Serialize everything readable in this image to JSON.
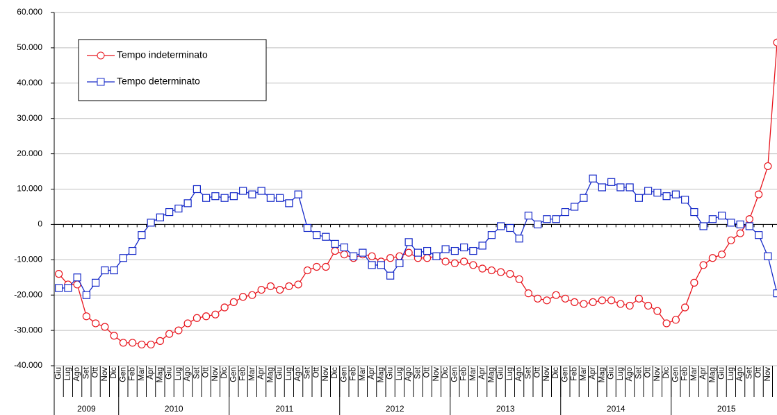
{
  "chart_data": {
    "type": "line",
    "categories": [
      "Giu",
      "Lug",
      "Ago",
      "Set",
      "Ott",
      "Nov",
      "Dic",
      "Gen",
      "Feb",
      "Mar",
      "Apr",
      "Mag",
      "Giu",
      "Lug",
      "Ago",
      "Set",
      "Ott",
      "Nov",
      "Dic",
      "Gen",
      "Feb",
      "Mar",
      "Apr",
      "Mag",
      "Giu",
      "Lug",
      "Ago",
      "Set",
      "Ott",
      "Nov",
      "Dic",
      "Gen",
      "Feb",
      "Mar",
      "Apr",
      "Mag",
      "Giu",
      "Lug",
      "Ago",
      "Set",
      "Ott",
      "Nov",
      "Dic",
      "Gen",
      "Feb",
      "Mar",
      "Apr",
      "Mag",
      "Giu",
      "Lug",
      "Ago",
      "Set",
      "Ott",
      "Nov",
      "Dic",
      "Gen",
      "Feb",
      "Mar",
      "Apr",
      "Mag",
      "Giu",
      "Lug",
      "Ago",
      "Set",
      "Ott",
      "Nov",
      "Dic",
      "Gen",
      "Feb",
      "Mar",
      "Apr",
      "Mag",
      "Giu",
      "Lug",
      "Ago",
      "Set",
      "Ott",
      "Nov",
      null
    ],
    "years": [
      "2009",
      "2010",
      "2011",
      "2012",
      "2013",
      "2014",
      "2015"
    ],
    "series": [
      {
        "name": "Tempo indeterminato",
        "color": "#e8141c",
        "marker": "circle",
        "values": [
          -14000,
          -17000,
          -17000,
          -26000,
          -28000,
          -29000,
          -31500,
          -33500,
          -33500,
          -34000,
          -34000,
          -33000,
          -31000,
          -30000,
          -28000,
          -26500,
          -26000,
          -25500,
          -23500,
          -22000,
          -20500,
          -20000,
          -18500,
          -17500,
          -18500,
          -17500,
          -17000,
          -13000,
          -12000,
          -12000,
          -7500,
          -8500,
          -9500,
          -8500,
          -9000,
          -10500,
          -9500,
          -9000,
          -8000,
          -9500,
          -9500,
          -9000,
          -10500,
          -11000,
          -10500,
          -11500,
          -12500,
          -13000,
          -13500,
          -14000,
          -15500,
          -19500,
          -21000,
          -21500,
          -20000,
          -21000,
          -22000,
          -22500,
          -22000,
          -21500,
          -21500,
          -22500,
          -23000,
          -21000,
          -23000,
          -24500,
          -28000,
          -27000,
          -23500,
          -16500,
          -11500,
          -9500,
          -8500,
          -4500,
          -2500,
          1500,
          8500,
          16500,
          51500
        ]
      },
      {
        "name": "Tempo determinato",
        "color": "#1428c8",
        "marker": "square",
        "values": [
          -18000,
          -18000,
          -15000,
          -20000,
          -16500,
          -13000,
          -13000,
          -9500,
          -7500,
          -3000,
          500,
          2000,
          3500,
          4500,
          6000,
          10000,
          7500,
          8000,
          7500,
          8000,
          9500,
          8500,
          9500,
          7500,
          7500,
          6000,
          8500,
          -1000,
          -3000,
          -3500,
          -5500,
          -6500,
          -9000,
          -8000,
          -11500,
          -11500,
          -14500,
          -11000,
          -5000,
          -8000,
          -7500,
          -9000,
          -7000,
          -7500,
          -6500,
          -7500,
          -6000,
          -3000,
          -500,
          -1000,
          -4000,
          2500,
          0,
          1500,
          1500,
          3500,
          5000,
          7500,
          13000,
          10500,
          12000,
          10500,
          10500,
          7500,
          9500,
          9000,
          8000,
          8500,
          7000,
          3500,
          -500,
          1500,
          2500,
          500,
          0,
          -500,
          -3000,
          -9000,
          -19500
        ]
      }
    ],
    "ylim": [
      -40000,
      60000
    ],
    "yticks": [
      {
        "value": -40000,
        "label": "-40.000"
      },
      {
        "value": -30000,
        "label": "-30.000"
      },
      {
        "value": -20000,
        "label": "-20.000"
      },
      {
        "value": -10000,
        "label": "-10.000"
      },
      0,
      {
        "value": 10000,
        "label": "10.000"
      },
      {
        "value": 20000,
        "label": "20.000"
      },
      {
        "value": 30000,
        "label": "30.000"
      },
      {
        "value": 40000,
        "label": "40.000"
      },
      {
        "value": 50000,
        "label": "50.000"
      },
      {
        "value": 60000,
        "label": "60.000"
      }
    ],
    "grid": true,
    "legend": "upper-left"
  }
}
